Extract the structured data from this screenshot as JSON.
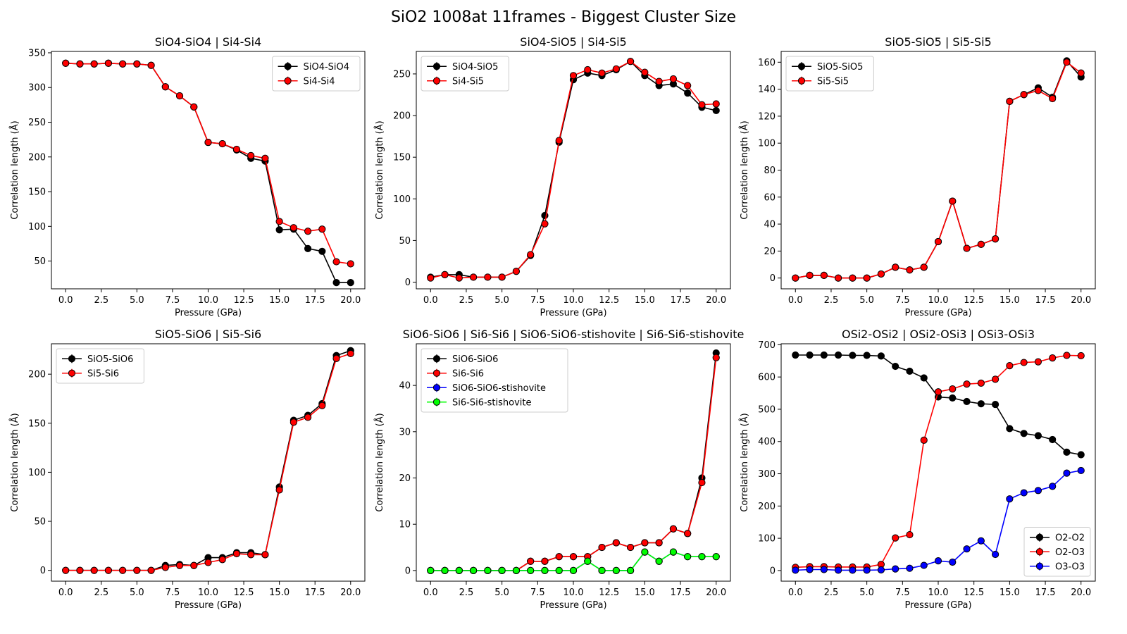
{
  "suptitle": "SiO2 1008at 11frames - Biggest Cluster Size",
  "chart_data": [
    {
      "type": "line",
      "title": "SiO4-SiO4 | Si4-Si4",
      "xlabel": "Pressure (GPa)",
      "ylabel": "Correlation length (Å)",
      "xlim": [
        -1,
        21
      ],
      "ylim": [
        10,
        352
      ],
      "xticks": [
        0.0,
        2.5,
        5.0,
        7.5,
        10.0,
        12.5,
        15.0,
        17.5,
        20.0
      ],
      "yticks": [
        50,
        100,
        150,
        200,
        250,
        300,
        350
      ],
      "legend_position": "top-right",
      "grid": false,
      "x": [
        0,
        1,
        2,
        3,
        4,
        5,
        6,
        7,
        8,
        9,
        10,
        11,
        12,
        13,
        14,
        15,
        16,
        17,
        18,
        19,
        20
      ],
      "series": [
        {
          "name": "SiO4-SiO4",
          "color": "#000000",
          "values": [
            335,
            334,
            334,
            335,
            334,
            334,
            332,
            301,
            288,
            272,
            221,
            219,
            210,
            198,
            194,
            95,
            96,
            68,
            64,
            19,
            19
          ]
        },
        {
          "name": "Si4-Si4",
          "color": "#ff0000",
          "values": [
            335,
            334,
            334,
            335,
            334,
            334,
            332,
            301,
            288,
            272,
            221,
            219,
            211,
            202,
            198,
            107,
            98,
            93,
            96,
            49,
            46
          ]
        }
      ]
    },
    {
      "type": "line",
      "title": "SiO4-SiO5 | Si4-Si5",
      "xlabel": "Pressure (GPa)",
      "ylabel": "Correlation length (Å)",
      "xlim": [
        -1,
        21
      ],
      "ylim": [
        -8,
        277
      ],
      "xticks": [
        0.0,
        2.5,
        5.0,
        7.5,
        10.0,
        12.5,
        15.0,
        17.5,
        20.0
      ],
      "yticks": [
        0,
        50,
        100,
        150,
        200,
        250
      ],
      "legend_position": "top-left",
      "grid": false,
      "x": [
        0,
        1,
        2,
        3,
        4,
        5,
        6,
        7,
        8,
        9,
        10,
        11,
        12,
        13,
        14,
        15,
        16,
        17,
        18,
        19,
        20
      ],
      "series": [
        {
          "name": "SiO4-SiO5",
          "color": "#000000",
          "values": [
            6,
            9,
            9,
            6,
            6,
            6,
            13,
            32,
            80,
            168,
            243,
            251,
            248,
            255,
            265,
            248,
            236,
            238,
            227,
            210,
            206
          ]
        },
        {
          "name": "Si4-Si5",
          "color": "#ff0000",
          "values": [
            5,
            9,
            5,
            6,
            6,
            6,
            13,
            33,
            70,
            170,
            248,
            255,
            251,
            256,
            265,
            252,
            241,
            244,
            236,
            213,
            214
          ]
        }
      ]
    },
    {
      "type": "line",
      "title": "SiO5-SiO5 | Si5-Si5",
      "xlabel": "Pressure (GPa)",
      "ylabel": "Correlation length (Å)",
      "xlim": [
        -1,
        21
      ],
      "ylim": [
        -8,
        168
      ],
      "xticks": [
        0.0,
        2.5,
        5.0,
        7.5,
        10.0,
        12.5,
        15.0,
        17.5,
        20.0
      ],
      "yticks": [
        0,
        20,
        40,
        60,
        80,
        100,
        120,
        140,
        160
      ],
      "legend_position": "top-left",
      "grid": false,
      "x": [
        0,
        1,
        2,
        3,
        4,
        5,
        6,
        7,
        8,
        9,
        10,
        11,
        12,
        13,
        14,
        15,
        16,
        17,
        18,
        19,
        20
      ],
      "series": [
        {
          "name": "SiO5-SiO5",
          "color": "#000000",
          "values": [
            0,
            2,
            2,
            0,
            0,
            0,
            3,
            8,
            6,
            8,
            27,
            57,
            22,
            25,
            29,
            131,
            136,
            141,
            134,
            161,
            149
          ]
        },
        {
          "name": "Si5-Si5",
          "color": "#ff0000",
          "values": [
            0,
            2,
            2,
            0,
            0,
            0,
            3,
            8,
            6,
            8,
            27,
            57,
            22,
            25,
            29,
            131,
            136,
            139,
            133,
            160,
            152
          ]
        }
      ]
    },
    {
      "type": "line",
      "title": "SiO5-SiO6 | Si5-Si6",
      "xlabel": "Pressure (GPa)",
      "ylabel": "Correlation length (Å)",
      "xlim": [
        -1,
        21
      ],
      "ylim": [
        -11,
        231
      ],
      "xticks": [
        0.0,
        2.5,
        5.0,
        7.5,
        10.0,
        12.5,
        15.0,
        17.5,
        20.0
      ],
      "yticks": [
        0,
        50,
        100,
        150,
        200
      ],
      "legend_position": "top-left",
      "grid": false,
      "x": [
        0,
        1,
        2,
        3,
        4,
        5,
        6,
        7,
        8,
        9,
        10,
        11,
        12,
        13,
        14,
        15,
        16,
        17,
        18,
        19,
        20
      ],
      "series": [
        {
          "name": "SiO5-SiO6",
          "color": "#000000",
          "values": [
            0,
            0,
            0,
            0,
            0,
            0,
            0,
            5,
            6,
            5,
            13,
            13,
            18,
            18,
            16,
            85,
            153,
            158,
            170,
            219,
            224
          ]
        },
        {
          "name": "Si5-Si6",
          "color": "#ff0000",
          "values": [
            0,
            0,
            0,
            0,
            0,
            0,
            0,
            3,
            5,
            5,
            8,
            11,
            17,
            16,
            16,
            82,
            151,
            156,
            168,
            216,
            221
          ]
        }
      ]
    },
    {
      "type": "line",
      "title": "SiO6-SiO6 | Si6-Si6 | SiO6-SiO6-stishovite | Si6-Si6-stishovite",
      "xlabel": "Pressure (GPa)",
      "ylabel": "Correlation length (Å)",
      "xlim": [
        -1,
        21
      ],
      "ylim": [
        -2.3,
        49
      ],
      "xticks": [
        0.0,
        2.5,
        5.0,
        7.5,
        10.0,
        12.5,
        15.0,
        17.5,
        20.0
      ],
      "yticks": [
        0,
        10,
        20,
        30,
        40
      ],
      "legend_position": "top-left",
      "grid": false,
      "x": [
        0,
        1,
        2,
        3,
        4,
        5,
        6,
        7,
        8,
        9,
        10,
        11,
        12,
        13,
        14,
        15,
        16,
        17,
        18,
        19,
        20
      ],
      "series": [
        {
          "name": "SiO6-SiO6",
          "color": "#000000",
          "values": [
            0,
            0,
            0,
            0,
            0,
            0,
            0,
            2,
            2,
            3,
            3,
            3,
            5,
            6,
            5,
            6,
            6,
            9,
            8,
            20,
            47
          ]
        },
        {
          "name": "Si6-Si6",
          "color": "#ff0000",
          "values": [
            0,
            0,
            0,
            0,
            0,
            0,
            0,
            2,
            2,
            3,
            3,
            3,
            5,
            6,
            5,
            6,
            6,
            9,
            8,
            19,
            46
          ]
        },
        {
          "name": "SiO6-SiO6-stishovite",
          "color": "#0000ff",
          "values": [
            0,
            0,
            0,
            0,
            0,
            0,
            0,
            0,
            0,
            0,
            0,
            2,
            0,
            0,
            0,
            4,
            2,
            4,
            3,
            3,
            3
          ]
        },
        {
          "name": "Si6-Si6-stishovite",
          "color": "#00ff00",
          "values": [
            0,
            0,
            0,
            0,
            0,
            0,
            0,
            0,
            0,
            0,
            0,
            2,
            0,
            0,
            0,
            4,
            2,
            4,
            3,
            3,
            3
          ]
        }
      ]
    },
    {
      "type": "line",
      "title": "OSi2-OSi2 | OSi2-OSi3 | OSi3-OSi3",
      "xlabel": "Pressure (GPa)",
      "ylabel": "Correlation length (Å)",
      "xlim": [
        -1,
        21
      ],
      "ylim": [
        -33,
        703
      ],
      "xticks": [
        0.0,
        2.5,
        5.0,
        7.5,
        10.0,
        12.5,
        15.0,
        17.5,
        20.0
      ],
      "yticks": [
        0,
        100,
        200,
        300,
        400,
        500,
        600,
        700
      ],
      "legend_position": "bottom-right",
      "grid": false,
      "x": [
        0,
        1,
        2,
        3,
        4,
        5,
        6,
        7,
        8,
        9,
        10,
        11,
        12,
        13,
        14,
        15,
        16,
        17,
        18,
        19,
        20
      ],
      "series": [
        {
          "name": "O2-O2",
          "color": "#000000",
          "values": [
            668,
            668,
            668,
            668,
            667,
            667,
            665,
            633,
            618,
            597,
            538,
            535,
            524,
            517,
            515,
            440,
            425,
            418,
            406,
            367,
            359
          ]
        },
        {
          "name": "O2-O3",
          "color": "#ff0000",
          "values": [
            10,
            12,
            12,
            11,
            11,
            11,
            19,
            101,
            111,
            404,
            554,
            563,
            578,
            581,
            593,
            635,
            645,
            647,
            659,
            667,
            666
          ]
        },
        {
          "name": "O3-O3",
          "color": "#0000ff",
          "values": [
            1,
            3,
            3,
            1,
            1,
            1,
            2,
            5,
            7,
            16,
            30,
            26,
            67,
            92,
            50,
            222,
            241,
            248,
            261,
            302,
            310
          ]
        }
      ]
    }
  ]
}
